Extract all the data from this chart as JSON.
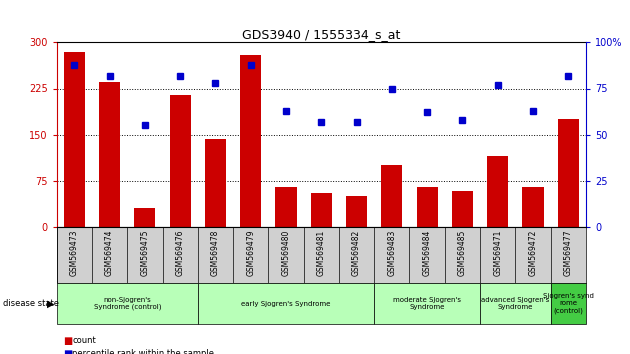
{
  "title": "GDS3940 / 1555334_s_at",
  "samples": [
    "GSM569473",
    "GSM569474",
    "GSM569475",
    "GSM569476",
    "GSM569478",
    "GSM569479",
    "GSM569480",
    "GSM569481",
    "GSM569482",
    "GSM569483",
    "GSM569484",
    "GSM569485",
    "GSM569471",
    "GSM569472",
    "GSM569477"
  ],
  "counts": [
    285,
    235,
    30,
    215,
    143,
    280,
    65,
    55,
    50,
    100,
    65,
    58,
    115,
    65,
    175
  ],
  "percentiles": [
    88,
    82,
    55,
    82,
    78,
    88,
    63,
    57,
    57,
    75,
    62,
    58,
    77,
    63,
    82
  ],
  "groups": [
    {
      "label": "non-Sjogren's\nSyndrome (control)",
      "start": 0,
      "end": 3,
      "color": "#b8ffb8"
    },
    {
      "label": "early Sjogren's Syndrome",
      "start": 4,
      "end": 8,
      "color": "#b8ffb8"
    },
    {
      "label": "moderate Sjogren's\nSyndrome",
      "start": 9,
      "end": 11,
      "color": "#b8ffb8"
    },
    {
      "label": "advanced Sjogren's\nSyndrome",
      "start": 12,
      "end": 13,
      "color": "#b8ffb8"
    },
    {
      "label": "Sjogren's synd\nrome\n(control)",
      "start": 14,
      "end": 14,
      "color": "#44cc44"
    }
  ],
  "ylim_left": [
    0,
    300
  ],
  "ylim_right": [
    0,
    100
  ],
  "yticks_left": [
    0,
    75,
    150,
    225,
    300
  ],
  "yticks_right": [
    0,
    25,
    50,
    75,
    100
  ],
  "bar_color": "#cc0000",
  "dot_color": "#0000cc",
  "tick_bg": "#d0d0d0"
}
